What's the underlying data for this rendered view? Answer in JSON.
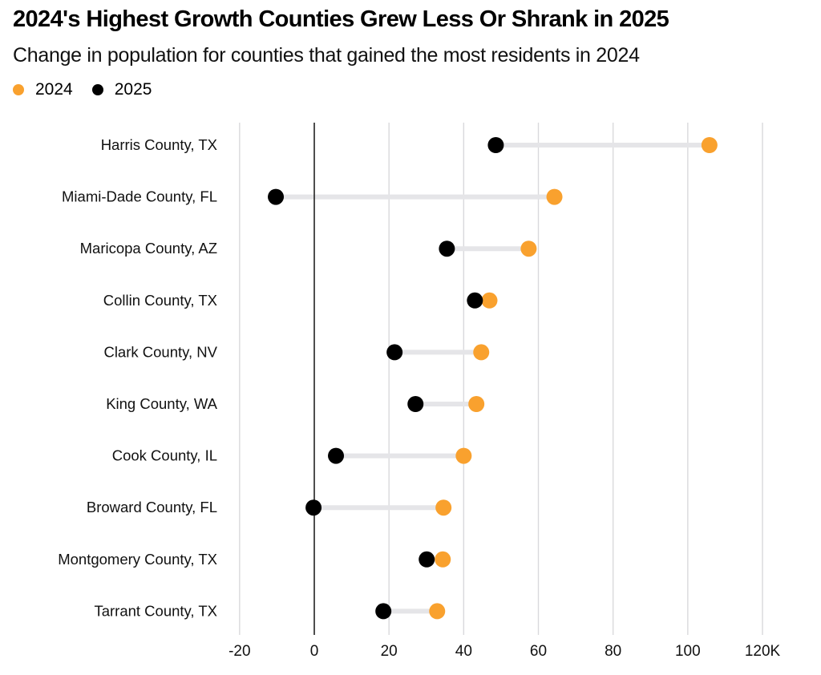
{
  "chart_data": {
    "type": "dot-range",
    "title": "2024's Highest Growth Counties Grew Less Or Shrank in 2025",
    "subtitle": "Change in population for counties that gained the most residents in 2024",
    "xlabel": "",
    "ylabel": "",
    "xlim": [
      -20,
      120
    ],
    "x_ticks": [
      -20,
      0,
      20,
      40,
      60,
      80,
      100,
      120
    ],
    "x_tick_labels": [
      "-20",
      "0",
      "20",
      "40",
      "60",
      "80",
      "100",
      "120K"
    ],
    "grid": true,
    "legend_position": "top-left",
    "categories": [
      "Harris County, TX",
      "Miami-Dade County, FL",
      "Maricopa County, AZ",
      "Collin County, TX",
      "Clark County, NV",
      "King County, WA",
      "Cook County, IL",
      "Broward County, FL",
      "Montgomery County, TX",
      "Tarrant County, TX"
    ],
    "series": [
      {
        "name": "2024",
        "color": "#F9A12E",
        "values": [
          105.8,
          64.3,
          57.4,
          46.9,
          44.7,
          43.4,
          40.0,
          34.6,
          34.4,
          32.9
        ]
      },
      {
        "name": "2025",
        "color": "#000000",
        "values": [
          48.6,
          -10.3,
          35.5,
          43.0,
          21.5,
          27.1,
          5.8,
          -0.2,
          30.1,
          18.5
        ]
      }
    ],
    "colors": {
      "connector": "#E5E5E8",
      "grid": "#D9D9DC",
      "zero_line": "#222222"
    }
  }
}
